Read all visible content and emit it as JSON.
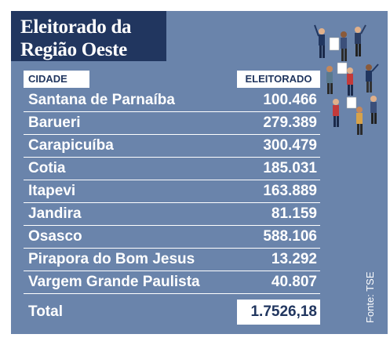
{
  "title": {
    "line1": "Eleitorado da",
    "line2": "Região Oeste"
  },
  "table": {
    "headers": {
      "city": "CIDADE",
      "electorate": "ELEITORADO"
    },
    "rows": [
      {
        "city": "Santana de Parnaíba",
        "value": "100.466"
      },
      {
        "city": "Barueri",
        "value": "279.389"
      },
      {
        "city": "Carapicuíba",
        "value": "300.479"
      },
      {
        "city": "Cotia",
        "value": "185.031"
      },
      {
        "city": "Itapevi",
        "value": "163.889"
      },
      {
        "city": "Jandira",
        "value": "81.159"
      },
      {
        "city": "Osasco",
        "value": "588.106"
      },
      {
        "city": "Pirapora do Bom Jesus",
        "value": "13.292"
      },
      {
        "city": "Vargem Grande Paulista",
        "value": "40.807"
      }
    ],
    "total": {
      "label": "Total",
      "value": "1.7526,18"
    }
  },
  "source": "Fonte: TSE",
  "illustration": "voters-crowd-illustration",
  "colors": {
    "panel": "#6a84ab",
    "title_bg": "#21365f",
    "text": "#ffffff"
  }
}
